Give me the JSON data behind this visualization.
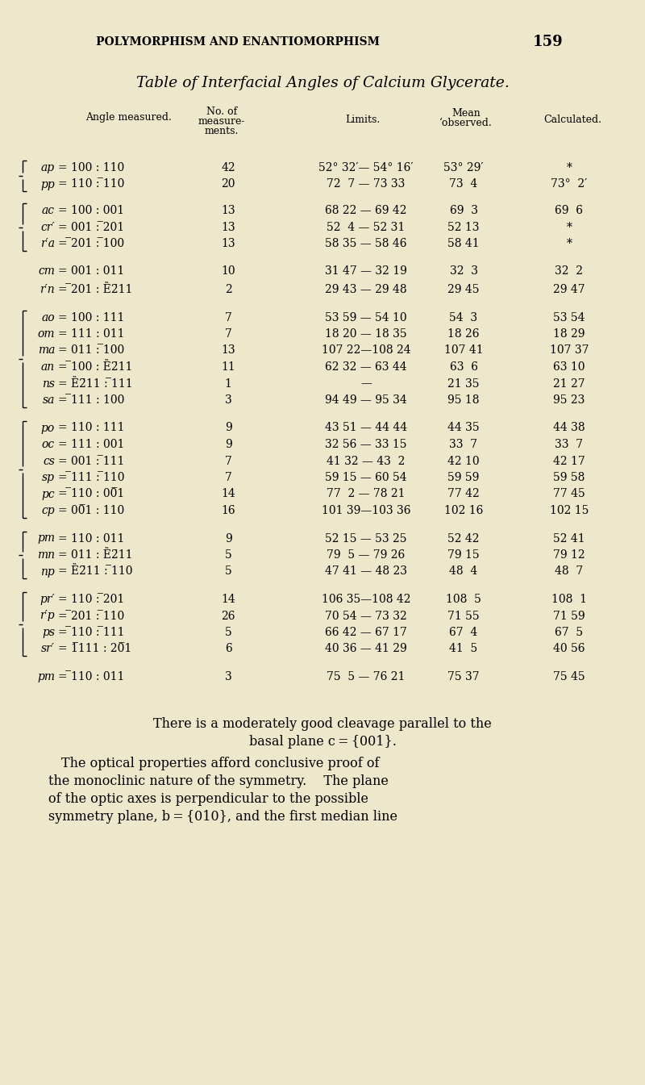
{
  "bg_color": "#ede8cc",
  "header_text": "POLYMORPHISM AND ENANTIOMORPHISM",
  "page_num": "159",
  "title": "Table of Interfacial Angles of Calcium Glycerate.",
  "rows": [
    {
      "open": true,
      "close": false,
      "sym": "ap",
      "eq": "= 100 : 110",
      "n": "42",
      "lim": "52° 32′— 54° 16′",
      "mean": "53° 29′",
      "calc": "*"
    },
    {
      "open": false,
      "close": true,
      "sym": "pp",
      "eq": "= 110 : ̅110",
      "n": "20",
      "lim": "72  7 — 73 33",
      "mean": "73  4",
      "calc": "73°  2′"
    },
    {
      "open": true,
      "close": false,
      "sym": "ac",
      "eq": "= 100 : 001",
      "n": "13",
      "lim": "68 22 — 69 42",
      "mean": "69  3",
      "calc": "69  6"
    },
    {
      "open": false,
      "close": false,
      "sym": "cr′",
      "eq": "= 001 : ̅201",
      "n": "13",
      "lim": "52  4 — 52 31",
      "mean": "52 13",
      "calc": "*"
    },
    {
      "open": false,
      "close": true,
      "sym": "r′a",
      "eq": "= ̅201 : ̅100",
      "n": "13",
      "lim": "58 35 — 58 46",
      "mean": "58 41",
      "calc": "*"
    },
    {
      "open": false,
      "close": false,
      "sym": "cm",
      "eq": "= 001 : 011",
      "n": "10",
      "lim": "31 47 — 32 19",
      "mean": "32  3",
      "calc": "32  2"
    },
    {
      "open": false,
      "close": false,
      "sym": "r′n",
      "eq": "= ̅201 : Ȅ2̄11",
      "n": "2",
      "lim": "29 43 — 29 48",
      "mean": "29 45",
      "calc": "29 47"
    },
    {
      "open": true,
      "close": false,
      "sym": "ao",
      "eq": "= 100 : 111",
      "n": "7",
      "lim": "53 59 — 54 10",
      "mean": "54  3",
      "calc": "53 54"
    },
    {
      "open": false,
      "close": false,
      "sym": "om",
      "eq": "= 111 : 011",
      "n": "7",
      "lim": "18 20 — 18 35",
      "mean": "18 26",
      "calc": "18 29"
    },
    {
      "open": false,
      "close": false,
      "sym": "ma",
      "eq": "= 011 : ̅100",
      "n": "13",
      "lim": "107 22—108 24",
      "mean": "107 41",
      "calc": "107 37"
    },
    {
      "open": false,
      "close": false,
      "sym": "an",
      "eq": "= ̅100 : Ȅ2̄11",
      "n": "11",
      "lim": "62 32 — 63 44",
      "mean": "63  6",
      "calc": "63 10"
    },
    {
      "open": false,
      "close": false,
      "sym": "ns",
      "eq": "= Ȅ2̄11 : ̅̅111",
      "n": "1",
      "lim": "—",
      "mean": "21 35",
      "calc": "21 27"
    },
    {
      "open": false,
      "close": true,
      "sym": "sa",
      "eq": "= ̅111 : 100",
      "n": "3",
      "lim": "94 49 — 95 34",
      "mean": "95 18",
      "calc": "95 23"
    },
    {
      "open": true,
      "close": false,
      "sym": "po",
      "eq": "= 110 : 111",
      "n": "9",
      "lim": "43 51 — 44 44",
      "mean": "44 35",
      "calc": "44 38"
    },
    {
      "open": false,
      "close": false,
      "sym": "oc",
      "eq": "= 111 : 001",
      "n": "9",
      "lim": "32 56 — 33 15",
      "mean": "33  7",
      "calc": "33  7"
    },
    {
      "open": false,
      "close": false,
      "sym": "cs",
      "eq": "= 001 : ̅111",
      "n": "7",
      "lim": "41 32 — 43  2",
      "mean": "42 10",
      "calc": "42 17"
    },
    {
      "open": false,
      "close": false,
      "sym": "sp",
      "eq": "= ̅111 : ̅110",
      "n": "7",
      "lim": "59 15 — 60 54",
      "mean": "59 59",
      "calc": "59 58"
    },
    {
      "open": false,
      "close": false,
      "sym": "pc",
      "eq": "= ̅110 : 00̅1",
      "n": "14",
      "lim": "77  2 — 78 21",
      "mean": "77 42",
      "calc": "77 45"
    },
    {
      "open": false,
      "close": true,
      "sym": "cp",
      "eq": "= 00̅1 : 110",
      "n": "16",
      "lim": "101 39—103 36",
      "mean": "102 16",
      "calc": "102 15"
    },
    {
      "open": true,
      "close": false,
      "sym": "pm",
      "eq": "= 110 : 011",
      "n": "9",
      "lim": "52 15 — 53 25",
      "mean": "52 42",
      "calc": "52 41"
    },
    {
      "open": false,
      "close": false,
      "sym": "mn",
      "eq": "= 011 : Ȅ2̄11",
      "n": "5",
      "lim": "79  5 — 79 26",
      "mean": "79 15",
      "calc": "79 12"
    },
    {
      "open": false,
      "close": true,
      "sym": "np",
      "eq": "= Ȅ2̄11 : ̅110",
      "n": "5",
      "lim": "47 41 — 48 23",
      "mean": "48  4",
      "calc": "48  7"
    },
    {
      "open": true,
      "close": false,
      "sym": "pr′",
      "eq": "= 110 : ̅201",
      "n": "14",
      "lim": "106 35—108 42",
      "mean": "108  5",
      "calc": "108  1"
    },
    {
      "open": false,
      "close": false,
      "sym": "r′p",
      "eq": "= ̅201 : ̅110",
      "n": "26",
      "lim": "70 54 — 73 32",
      "mean": "71 55",
      "calc": "71 59"
    },
    {
      "open": false,
      "close": false,
      "sym": "ps",
      "eq": "= ̅110 : ̅111",
      "n": "5",
      "lim": "66 42 — 67 17",
      "mean": "67  4",
      "calc": "67  5"
    },
    {
      "open": false,
      "close": true,
      "sym": "sr′",
      "eq": "= 1̅111 : 20̅1",
      "n": "6",
      "lim": "40 36 — 41 29",
      "mean": "41  5",
      "calc": "40 56"
    },
    {
      "open": false,
      "close": false,
      "sym": "pm",
      "eq": "= ̅110 : 011",
      "n": "3",
      "lim": "75  5 — 76 21",
      "mean": "75 37",
      "calc": "75 45"
    }
  ],
  "footer": [
    "There is a moderately good cleavage parallel to the",
    "basal plane c = {001}.",
    " The optical properties afford conclusive proof of",
    "the monoclinic nature of the symmetry. The plane",
    "of the optic axes is perpendicular to the possible",
    "symmetry plane, b = {010}, and the first median line"
  ]
}
